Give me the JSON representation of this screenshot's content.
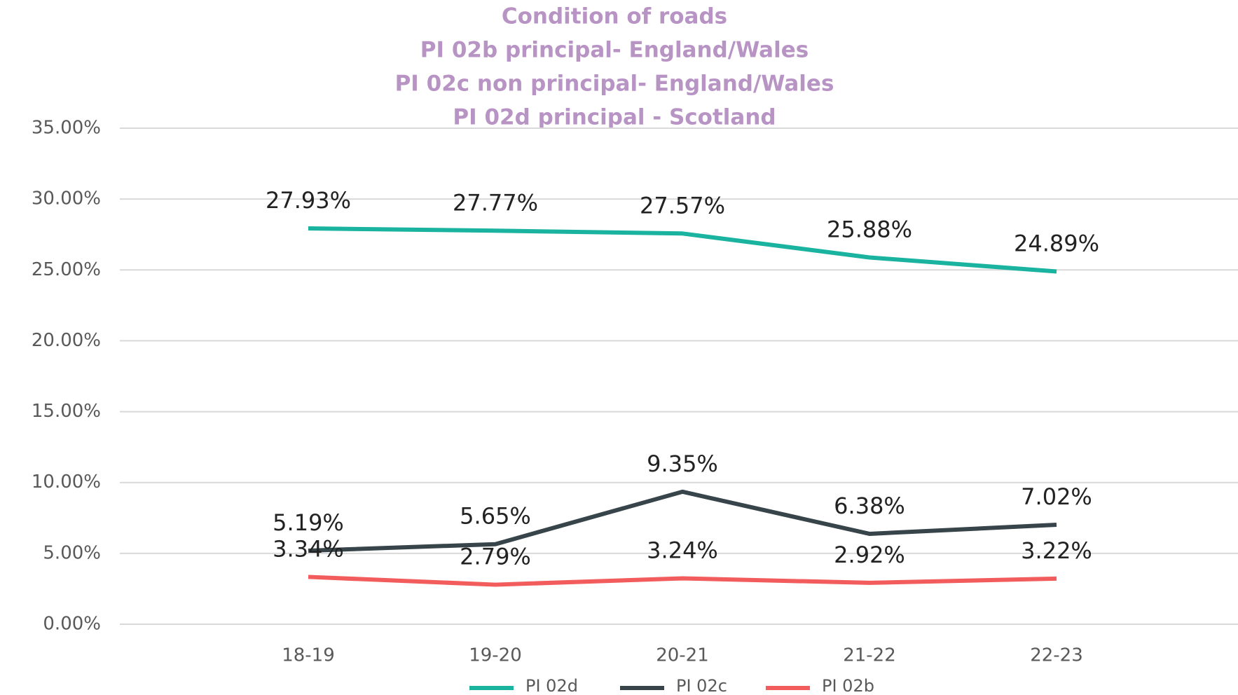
{
  "chart_data": {
    "type": "line",
    "title": [
      "Condition of roads",
      "PI 02b principal- England/Wales",
      "PI 02c non principal- England/Wales",
      "PI 02d principal - Scotland"
    ],
    "categories": [
      "18-19",
      "19-20",
      "20-21",
      "21-22",
      "22-23"
    ],
    "series": [
      {
        "name": "PI 02d",
        "color": "#1ab3a0",
        "values": [
          27.93,
          27.77,
          27.57,
          25.88,
          24.89
        ],
        "value_labels": [
          "27.93%",
          "27.77%",
          "27.57%",
          "25.88%",
          "24.89%"
        ]
      },
      {
        "name": "PI 02c",
        "color": "#37444a",
        "values": [
          5.19,
          5.65,
          9.35,
          6.38,
          7.02
        ],
        "value_labels": [
          "5.19%",
          "5.65%",
          "9.35%",
          "6.38%",
          "7.02%"
        ]
      },
      {
        "name": "PI 02b",
        "color": "#f25c5c",
        "values": [
          3.34,
          2.79,
          3.24,
          2.92,
          3.22
        ],
        "value_labels": [
          "3.34%",
          "2.79%",
          "3.24%",
          "2.92%",
          "3.22%"
        ]
      }
    ],
    "ylim": [
      0,
      35
    ],
    "yticks": [
      {
        "value": 0,
        "label": "0.00%"
      },
      {
        "value": 5,
        "label": "5.00%"
      },
      {
        "value": 10,
        "label": "10.00%"
      },
      {
        "value": 15,
        "label": "15.00%"
      },
      {
        "value": 20,
        "label": "20.00%"
      },
      {
        "value": 25,
        "label": "25.00%"
      },
      {
        "value": 30,
        "label": "30.00%"
      },
      {
        "value": 35,
        "label": "35.00%"
      }
    ],
    "grid": true,
    "legend": "bottom"
  }
}
